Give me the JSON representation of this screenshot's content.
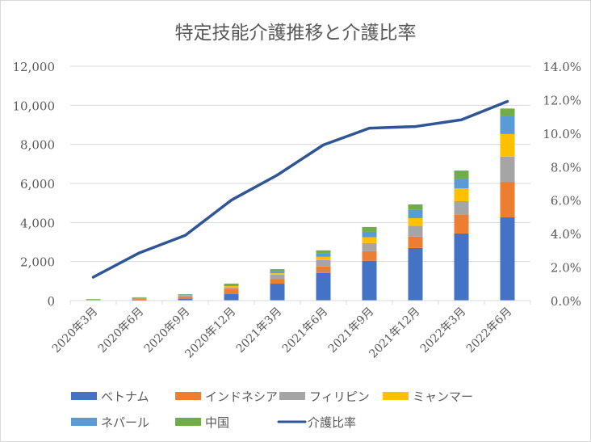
{
  "chart_data": {
    "type": "bar",
    "stacked": true,
    "title": "特定技能介護推移と介護比率",
    "categories": [
      "2020年3月",
      "2020年6月",
      "2020年9月",
      "2020年12月",
      "2021年3月",
      "2021年6月",
      "2021年9月",
      "2021年12月",
      "2022年3月",
      "2022年6月"
    ],
    "series": [
      {
        "name": "ベトナム",
        "color": "#4472c4",
        "values": [
          10,
          50,
          83,
          330,
          867,
          1417,
          2036,
          2696,
          3439,
          4264
        ]
      },
      {
        "name": "インドネシア",
        "color": "#ed7d31",
        "values": [
          5,
          50,
          82,
          248,
          247,
          330,
          495,
          578,
          963,
          1816
        ]
      },
      {
        "name": "フィリピン",
        "color": "#a5a5a5",
        "values": [
          25,
          25,
          83,
          82,
          220,
          330,
          413,
          550,
          688,
          1293
        ]
      },
      {
        "name": "ミャンマー",
        "color": "#ffc000",
        "values": [
          5,
          10,
          27,
          83,
          69,
          165,
          302,
          399,
          660,
          1155
        ]
      },
      {
        "name": "ネパール",
        "color": "#5b9bd5",
        "values": [
          5,
          10,
          28,
          41,
          83,
          165,
          275,
          426,
          495,
          908
        ]
      },
      {
        "name": "中国",
        "color": "#70ad47",
        "values": [
          30,
          25,
          27,
          83,
          123,
          165,
          248,
          275,
          413,
          399
        ]
      }
    ],
    "line": {
      "name": "介護比率",
      "color": "#2f5597",
      "axis": "right",
      "values": [
        1.4,
        2.85,
        3.9,
        6.0,
        7.5,
        9.3,
        10.3,
        10.4,
        10.8,
        11.9
      ]
    },
    "ylim": [
      0,
      12000
    ],
    "yticks": [
      "0",
      "2,000",
      "4,000",
      "6,000",
      "8,000",
      "10,000",
      "12,000"
    ],
    "y2lim": [
      0,
      14
    ],
    "y2ticks": [
      "0.0%",
      "2.0%",
      "4.0%",
      "6.0%",
      "8.0%",
      "10.0%",
      "12.0%",
      "14.0%"
    ],
    "grid": true,
    "legend": "bottom"
  }
}
